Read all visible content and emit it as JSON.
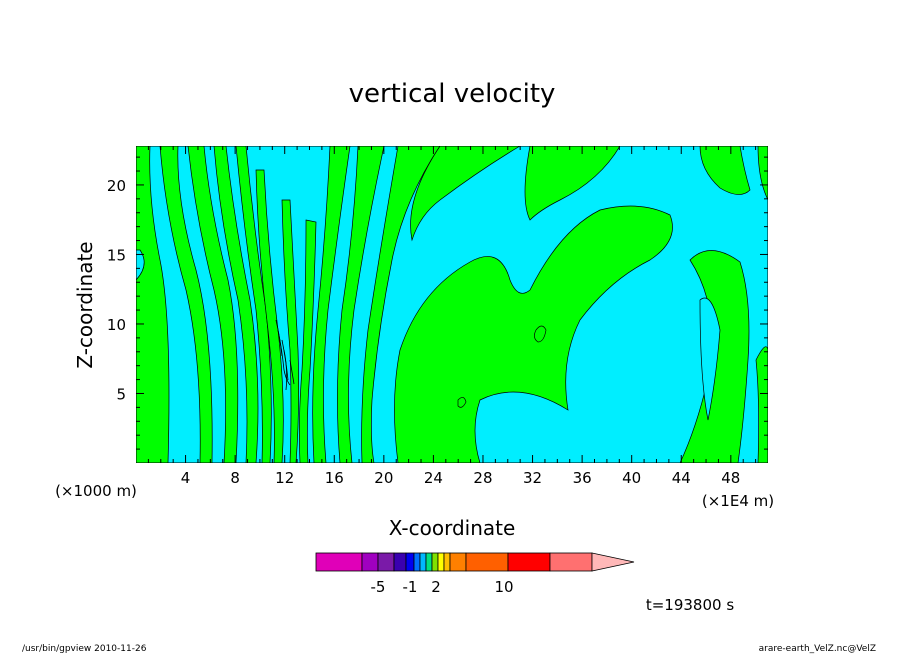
{
  "chart_data": {
    "type": "heatmap",
    "title": "vertical velocity",
    "xlabel": "X-coordinate",
    "ylabel": "Z-coordinate",
    "x_unit_left": "(×1000 m)",
    "x_unit_right": "(×1E4 m)",
    "xlim": [
      0,
      51
    ],
    "ylim": [
      0,
      22.8
    ],
    "x_ticks": [
      4,
      8,
      12,
      16,
      20,
      24,
      28,
      32,
      36,
      40,
      44,
      48
    ],
    "y_ticks": [
      5,
      10,
      15,
      20
    ],
    "colors": {
      "positive": "#00ff00",
      "negative": "#00eeff"
    },
    "colorbar": {
      "colors": [
        "#e000b8",
        "#a000c0",
        "#7a1aa8",
        "#3a00b0",
        "#0000f0",
        "#0070ff",
        "#00b8ff",
        "#00e080",
        "#80e000",
        "#ffff00",
        "#ffc000",
        "#ff8000",
        "#ff6000",
        "#ff0000",
        "#ff7070",
        "#ffb8b8"
      ],
      "labels": [
        "-5",
        "-1",
        "2",
        "10"
      ]
    },
    "time_label": "t=193800 s"
  },
  "footer": {
    "left": "/usr/bin/gpview   2010-11-26",
    "right": "arare-earth_VelZ.nc@VelZ"
  }
}
